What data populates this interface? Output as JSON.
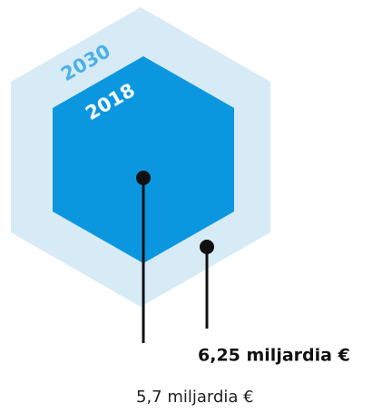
{
  "items": [
    {
      "year": "2030",
      "label": "6,25 miljardia €"
    },
    {
      "year": "2018",
      "label": "5,7 miljardia €"
    }
  ]
}
